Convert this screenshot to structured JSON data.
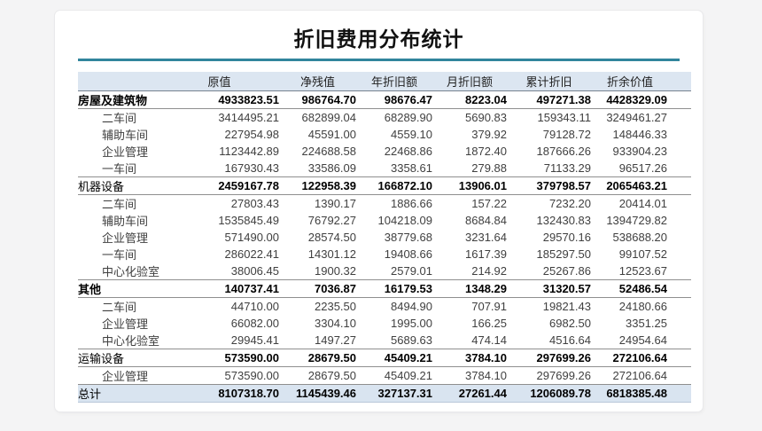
{
  "chart_data": {
    "type": "table",
    "title": "折旧费用分布统计",
    "columns": [
      "原值",
      "净残值",
      "年折旧额",
      "月折旧额",
      "累计折旧",
      "折余价值"
    ],
    "rows": [
      {
        "label": "房屋及建筑物",
        "type": "section",
        "bold_label": true,
        "values": [
          "4933823.51",
          "986764.70",
          "98676.47",
          "8223.04",
          "497271.38",
          "4428329.09"
        ]
      },
      {
        "label": "二车间",
        "type": "sub",
        "bold_label": false,
        "values": [
          "3414495.21",
          "682899.04",
          "68289.90",
          "5690.83",
          "159343.11",
          "3249461.27"
        ]
      },
      {
        "label": "辅助车间",
        "type": "sub",
        "bold_label": false,
        "values": [
          "227954.98",
          "45591.00",
          "4559.10",
          "379.92",
          "79128.72",
          "148446.33"
        ]
      },
      {
        "label": "企业管理",
        "type": "sub",
        "bold_label": false,
        "values": [
          "1123442.89",
          "224688.58",
          "22468.86",
          "1872.40",
          "187666.26",
          "933904.23"
        ]
      },
      {
        "label": "一车间",
        "type": "sub",
        "bold_label": false,
        "values": [
          "167930.43",
          "33586.09",
          "3358.61",
          "279.88",
          "71133.29",
          "96517.26"
        ]
      },
      {
        "label": "机器设备",
        "type": "section",
        "bold_label": false,
        "values": [
          "2459167.78",
          "122958.39",
          "166872.10",
          "13906.01",
          "379798.57",
          "2065463.21"
        ]
      },
      {
        "label": "二车间",
        "type": "sub",
        "bold_label": false,
        "values": [
          "27803.43",
          "1390.17",
          "1886.66",
          "157.22",
          "7232.20",
          "20414.01"
        ]
      },
      {
        "label": "辅助车间",
        "type": "sub",
        "bold_label": false,
        "values": [
          "1535845.49",
          "76792.27",
          "104218.09",
          "8684.84",
          "132430.83",
          "1394729.82"
        ]
      },
      {
        "label": "企业管理",
        "type": "sub",
        "bold_label": false,
        "values": [
          "571490.00",
          "28574.50",
          "38779.68",
          "3231.64",
          "29570.16",
          "538688.20"
        ]
      },
      {
        "label": "一车间",
        "type": "sub",
        "bold_label": false,
        "values": [
          "286022.41",
          "14301.12",
          "19408.66",
          "1617.39",
          "185297.50",
          "99107.52"
        ]
      },
      {
        "label": "中心化验室",
        "type": "sub",
        "bold_label": false,
        "values": [
          "38006.45",
          "1900.32",
          "2579.01",
          "214.92",
          "25267.86",
          "12523.67"
        ]
      },
      {
        "label": "其他",
        "type": "section",
        "bold_label": true,
        "values": [
          "140737.41",
          "7036.87",
          "16179.53",
          "1348.29",
          "31320.57",
          "52486.54"
        ]
      },
      {
        "label": "二车间",
        "type": "sub",
        "bold_label": false,
        "values": [
          "44710.00",
          "2235.50",
          "8494.90",
          "707.91",
          "19821.43",
          "24180.66"
        ]
      },
      {
        "label": "企业管理",
        "type": "sub",
        "bold_label": false,
        "values": [
          "66082.00",
          "3304.10",
          "1995.00",
          "166.25",
          "6982.50",
          "3351.25"
        ]
      },
      {
        "label": "中心化验室",
        "type": "sub",
        "bold_label": false,
        "values": [
          "29945.41",
          "1497.27",
          "5689.63",
          "474.14",
          "4516.64",
          "24954.64"
        ]
      },
      {
        "label": "运输设备",
        "type": "section",
        "bold_label": false,
        "values": [
          "573590.00",
          "28679.50",
          "45409.21",
          "3784.10",
          "297699.26",
          "272106.64"
        ]
      },
      {
        "label": "企业管理",
        "type": "sub",
        "bold_label": false,
        "values": [
          "573590.00",
          "28679.50",
          "45409.21",
          "3784.10",
          "297699.26",
          "272106.64"
        ]
      },
      {
        "label": "总计",
        "type": "total",
        "bold_label": false,
        "values": [
          "8107318.70",
          "1145439.46",
          "327137.31",
          "27261.44",
          "1206089.78",
          "6818385.48"
        ]
      }
    ]
  },
  "colors": {
    "accent_line": "#31859C",
    "header_bg": "#dce6f1",
    "total_bg": "#d9e4f0",
    "page_bg": "#f4f4f5",
    "card_bg": "#ffffff"
  }
}
